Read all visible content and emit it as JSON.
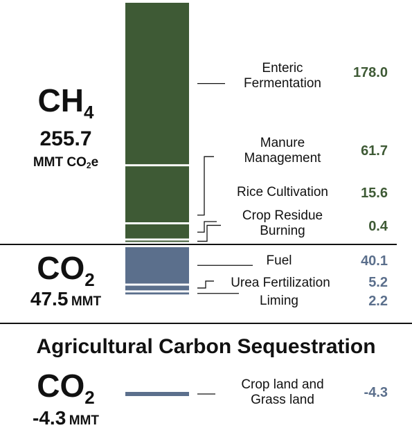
{
  "colors": {
    "ch4": "#3e5a35",
    "co2": "#5b6f8c",
    "text": "#111111"
  },
  "sections": {
    "ch4": {
      "formula": "CH",
      "subscript": "4",
      "total": "255.7",
      "unit_main": "MMT CO",
      "unit_sub": "2",
      "unit_tail": "e"
    },
    "co2": {
      "formula": "CO",
      "subscript": "2",
      "total": "47.5",
      "unit": "MMT"
    },
    "seq": {
      "title": "Agricultural Carbon Sequestration",
      "formula": "CO",
      "subscript": "2",
      "total": "-4.3",
      "unit": "MMT"
    }
  },
  "chart_data": {
    "type": "bar",
    "stacked": true,
    "groups": [
      {
        "gas": "CH4",
        "items": [
          {
            "label": "Enteric Fermentation",
            "value": 178.0,
            "display": "178.0"
          },
          {
            "label": "Manure Management",
            "value": 61.7,
            "display": "61.7"
          },
          {
            "label": "Rice Cultivation",
            "value": 15.6,
            "display": "15.6"
          },
          {
            "label": "Crop Residue Burning",
            "value": 0.4,
            "display": "0.4"
          }
        ]
      },
      {
        "gas": "CO2",
        "items": [
          {
            "label": "Fuel",
            "value": 40.1,
            "display": "40.1"
          },
          {
            "label": "Urea Fertilization",
            "value": 5.2,
            "display": "5.2"
          },
          {
            "label": "Liming",
            "value": 2.2,
            "display": "2.2"
          }
        ]
      },
      {
        "gas": "CO2 sequestration",
        "items": [
          {
            "label": "Crop land and Grass land",
            "value": -4.3,
            "display": "-4.3"
          }
        ]
      }
    ]
  }
}
